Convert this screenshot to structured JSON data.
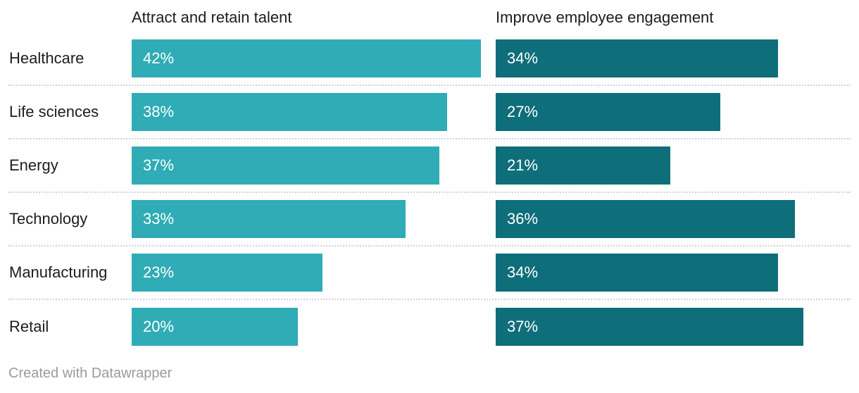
{
  "chart": {
    "footer_credit": "Created with Datawrapper"
  },
  "chart_data": {
    "type": "bar",
    "orientation": "horizontal",
    "categories": [
      "Healthcare",
      "Life sciences",
      "Energy",
      "Technology",
      "Manufacturing",
      "Retail"
    ],
    "series": [
      {
        "name": "Attract and retain talent",
        "color": "#2FACB6",
        "values": [
          42,
          38,
          37,
          33,
          23,
          20
        ]
      },
      {
        "name": "Improve employee engagement",
        "color": "#0E6E79",
        "values": [
          34,
          27,
          21,
          36,
          34,
          37
        ]
      }
    ],
    "value_suffix": "%",
    "value_labels": "inside-start-white",
    "xlim": [
      0,
      42.5
    ],
    "grid": false,
    "legend_position": "column-headers",
    "row_separator": "dotted"
  },
  "colors": {
    "label_text": "#1d1d1d",
    "value_text": "#ffffff",
    "separator": "#d2d2d2",
    "footer_text": "#9b9b9b",
    "background": "#ffffff"
  }
}
